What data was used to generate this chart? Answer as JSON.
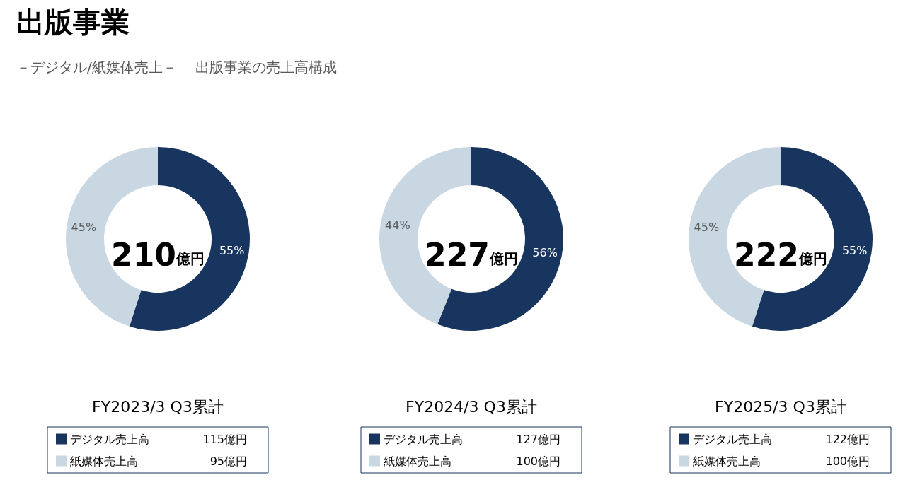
{
  "chart_data": [
    {
      "type": "donut",
      "title": "出版事業",
      "subtitle": "－デジタル/紙媒体売上－　 出版事業の売上高構成",
      "xlabel": "FY2023/3 Q3累計",
      "categories": [
        "デジタル売上高",
        "紙媒体売上高"
      ],
      "values": [
        55,
        45
      ],
      "colors": [
        "#17355e",
        "#c8d7e2"
      ],
      "value_labels": [
        "55%",
        "45%"
      ],
      "legend": "bottom",
      "annotations": [
        "210億円",
        "115億円",
        "95億円"
      ]
    },
    {
      "type": "donut",
      "xlabel": "FY2024/3 Q3累計",
      "categories": [
        "デジタル売上高",
        "紙媒体売上高"
      ],
      "values": [
        56,
        44
      ],
      "colors": [
        "#17355e",
        "#c8d7e2"
      ],
      "value_labels": [
        "56%",
        "44%"
      ],
      "legend": "bottom",
      "annotations": [
        "227億円",
        "127億円",
        "100億円"
      ]
    },
    {
      "type": "donut",
      "xlabel": "FY2025/3 Q3累計",
      "categories": [
        "デジタル売上高",
        "紙媒体売上高"
      ],
      "values": [
        55,
        45
      ],
      "colors": [
        "#17355e",
        "#c8d7e2"
      ],
      "value_labels": [
        "55%",
        "45%"
      ],
      "legend": "bottom",
      "annotations": [
        "222億円",
        "122億円",
        "100億円"
      ]
    }
  ]
}
